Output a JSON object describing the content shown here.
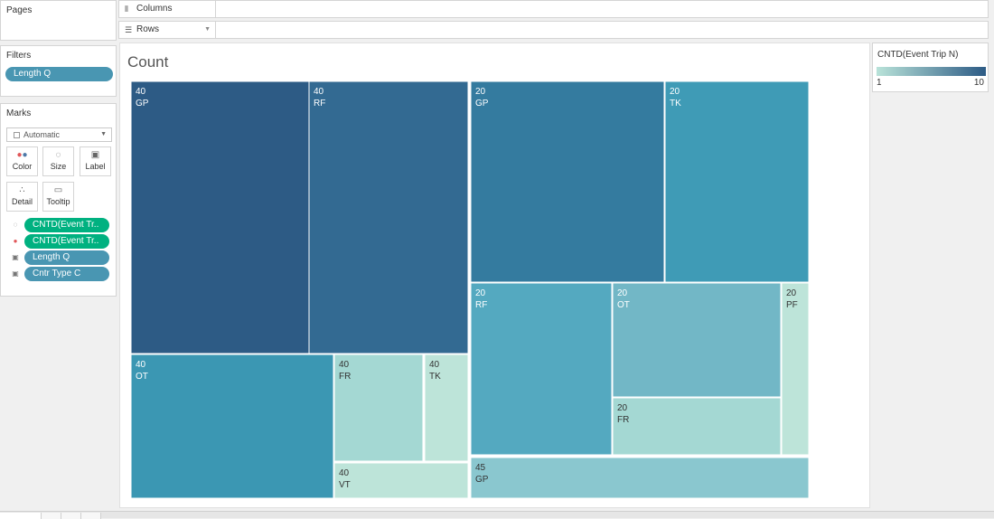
{
  "pages": {
    "title": "Pages"
  },
  "filters": {
    "title": "Filters",
    "items": [
      "Length Q"
    ]
  },
  "marks": {
    "title": "Marks",
    "mark_type": "Automatic",
    "buttons": [
      {
        "label": "Color",
        "icon": "color-dots-icon"
      },
      {
        "label": "Size",
        "icon": "size-icon"
      },
      {
        "label": "Label",
        "icon": "label-icon"
      },
      {
        "label": "Detail",
        "icon": "detail-icon"
      },
      {
        "label": "Tooltip",
        "icon": "tooltip-icon"
      }
    ],
    "fields": [
      {
        "icon": "size-icon",
        "label": "CNTD(Event Tr..",
        "color": "#00b180"
      },
      {
        "icon": "color-dots-icon",
        "label": "CNTD(Event Tr..",
        "color": "#00b180"
      },
      {
        "icon": "label-icon",
        "label": "Length Q",
        "color": "#4996b2"
      },
      {
        "icon": "label-icon",
        "label": "Cntr Type C",
        "color": "#4996b2"
      }
    ]
  },
  "shelves": {
    "columns": "Columns",
    "rows": "Rows"
  },
  "view": {
    "title": "Count"
  },
  "legend": {
    "title": "CNTD(Event Trip N)",
    "min": "1",
    "max": "10",
    "color_min": "#b9e3d9",
    "color_max": "#2d5b85"
  },
  "chart_data": {
    "type": "treemap",
    "title": "Count",
    "groups": [
      {
        "length": "40",
        "tiles": [
          {
            "label": "40",
            "cntr": "GP",
            "color": "#2d5b85"
          },
          {
            "label": "40",
            "cntr": "RF",
            "color": "#336a92"
          },
          {
            "label": "40",
            "cntr": "OT",
            "color": "#3b97b3"
          },
          {
            "label": "40",
            "cntr": "FR",
            "color": "#a4d8d3"
          },
          {
            "label": "40",
            "cntr": "TK",
            "color": "#bde4d9"
          },
          {
            "label": "40",
            "cntr": "VT",
            "color": "#bde4d9"
          }
        ]
      },
      {
        "length": "20",
        "tiles": [
          {
            "label": "20",
            "cntr": "GP",
            "color": "#347b9f"
          },
          {
            "label": "20",
            "cntr": "TK",
            "color": "#3f9bb6"
          },
          {
            "label": "20",
            "cntr": "RF",
            "color": "#54a9c0"
          },
          {
            "label": "20",
            "cntr": "OT",
            "color": "#72b7c6"
          },
          {
            "label": "20",
            "cntr": "PF",
            "color": "#bde4d9"
          },
          {
            "label": "20",
            "cntr": "FR",
            "color": "#a4d8d3"
          }
        ]
      },
      {
        "length": "45",
        "tiles": [
          {
            "label": "45",
            "cntr": "GP",
            "color": "#8ac7cf"
          }
        ]
      }
    ]
  }
}
